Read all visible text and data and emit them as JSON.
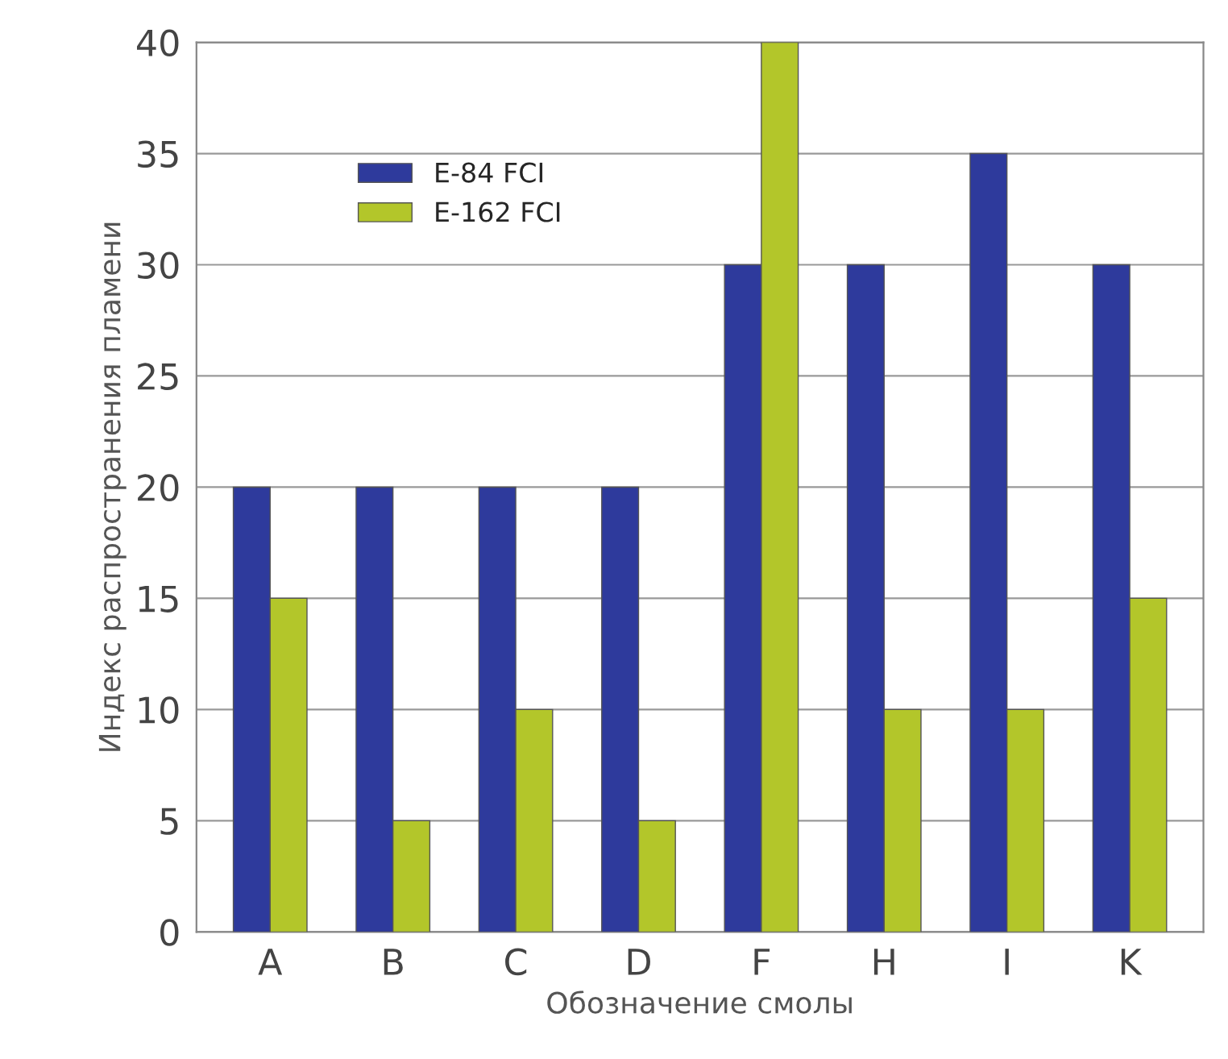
{
  "chart_data": {
    "type": "bar",
    "xlabel": "Обозначение смолы",
    "ylabel": "Индекс распространения пламени",
    "categories": [
      "A",
      "B",
      "C",
      "D",
      "F",
      "H",
      "I",
      "K"
    ],
    "series": [
      {
        "name": "E-84 FCI",
        "color": "#2e3a9c",
        "values": [
          20,
          20,
          20,
          20,
          30,
          30,
          35,
          30
        ]
      },
      {
        "name": "E-162 FCI",
        "color": "#b3c62a",
        "values": [
          15,
          5,
          10,
          5,
          40,
          10,
          10,
          15
        ]
      }
    ],
    "ylim": [
      0,
      40
    ],
    "yticks": [
      0,
      5,
      10,
      15,
      20,
      25,
      30,
      35,
      40
    ],
    "grid": "y",
    "legend": "top left"
  }
}
